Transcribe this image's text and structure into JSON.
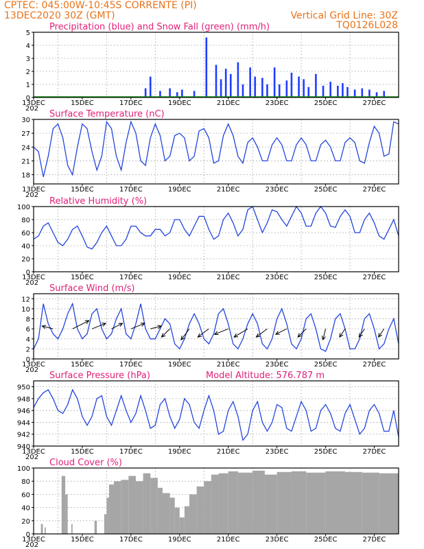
{
  "header": {
    "line1": "CPTEC:   045:00W-10:45S   CORRENTE (PI)",
    "line2_left": "13DEC2020 30Z (GMT)",
    "line2_right": "Vertical Grid Line: 30Z",
    "line3_right": "TQ0126L028"
  },
  "colors": {
    "header": "#e8731a",
    "title": "#e0207a",
    "line": "#2244dd",
    "precip": "#1e3cff",
    "snow": "#1a9a1a",
    "cloud": "#a6a6a6",
    "arrow": "#000000"
  },
  "x_axis": {
    "ticks": [
      "13DEC",
      "15DEC",
      "17DEC",
      "19DEC",
      "21DEC",
      "23DEC",
      "25DEC",
      "27DEC"
    ],
    "year_stub": "202",
    "days_start": "13DEC2020",
    "days_span": 15
  },
  "chart_data": [
    {
      "type": "bar",
      "title": "Precipitation (blue) and Snow Fall (green) (mm/h)",
      "ylim": [
        0,
        5
      ],
      "yticks": [
        "0",
        "1",
        "2",
        "3",
        "4",
        "5"
      ],
      "grid": true,
      "series": [
        {
          "name": "Precipitation",
          "color": "#1e3cff",
          "x": [
            4.6,
            4.8,
            5.2,
            5.6,
            5.9,
            6.1,
            6.6,
            7.1,
            7.5,
            7.7,
            7.9,
            8.1,
            8.4,
            8.6,
            8.9,
            9.1,
            9.4,
            9.6,
            9.9,
            10.1,
            10.4,
            10.6,
            10.9,
            11.1,
            11.3,
            11.6,
            11.9,
            12.2,
            12.5,
            12.7,
            12.9,
            13.2,
            13.5,
            13.8,
            14.1,
            14.4
          ],
          "values": [
            0.7,
            1.6,
            0.5,
            0.7,
            0.4,
            0.6,
            0.5,
            4.6,
            2.5,
            1.4,
            2.2,
            1.8,
            2.7,
            1.0,
            2.3,
            1.6,
            1.5,
            1.0,
            2.3,
            1.0,
            1.3,
            1.9,
            1.6,
            1.4,
            0.8,
            1.8,
            0.9,
            1.2,
            0.9,
            1.1,
            0.8,
            0.6,
            0.7,
            0.6,
            0.4,
            0.5
          ]
        },
        {
          "name": "Snow Fall",
          "color": "#1a9a1a",
          "x": [],
          "values": []
        }
      ]
    },
    {
      "type": "line",
      "title": "Surface Temperature (nC)",
      "ylim": [
        16,
        30
      ],
      "yticks": [
        "18",
        "21",
        "24",
        "27",
        "30"
      ],
      "grid": true,
      "x": [
        0.0,
        0.2,
        0.4,
        0.6,
        0.8,
        1.0,
        1.2,
        1.4,
        1.6,
        1.8,
        2.0,
        2.2,
        2.4,
        2.6,
        2.8,
        3.0,
        3.2,
        3.4,
        3.6,
        3.8,
        4.0,
        4.2,
        4.4,
        4.6,
        4.8,
        5.0,
        5.2,
        5.4,
        5.6,
        5.8,
        6.0,
        6.2,
        6.4,
        6.6,
        6.8,
        7.0,
        7.2,
        7.4,
        7.6,
        7.8,
        8.0,
        8.2,
        8.4,
        8.6,
        8.8,
        9.0,
        9.2,
        9.4,
        9.6,
        9.8,
        10.0,
        10.2,
        10.4,
        10.6,
        10.8,
        11.0,
        11.2,
        11.4,
        11.6,
        11.8,
        12.0,
        12.2,
        12.4,
        12.6,
        12.8,
        13.0,
        13.2,
        13.4,
        13.6,
        13.8,
        14.0,
        14.2,
        14.4,
        14.6,
        14.8,
        15.0
      ],
      "values": [
        24,
        23,
        17.5,
        22,
        28,
        29,
        26,
        20,
        18,
        24,
        29,
        28,
        23,
        19,
        22,
        29.5,
        28,
        22,
        19,
        25,
        29.5,
        27,
        21,
        20,
        26,
        29,
        26.5,
        21,
        22,
        26.5,
        27,
        26,
        21,
        22,
        27.5,
        28,
        26,
        20.5,
        21,
        26.5,
        29,
        26.5,
        22,
        20.5,
        25,
        26,
        24,
        21,
        21,
        24.5,
        26,
        24.5,
        21,
        21,
        24.5,
        26,
        24.5,
        21,
        21,
        24.5,
        25.5,
        24,
        21,
        21,
        25,
        26,
        25,
        21,
        20.5,
        25,
        28.5,
        27,
        22,
        22.5,
        29.5,
        29
      ]
    },
    {
      "type": "line",
      "title": "Relative Humidity (%)",
      "ylim": [
        0,
        100
      ],
      "yticks": [
        "0",
        "20",
        "40",
        "60",
        "80",
        "100"
      ],
      "grid": true,
      "x": [
        0.0,
        0.2,
        0.4,
        0.6,
        0.8,
        1.0,
        1.2,
        1.4,
        1.6,
        1.8,
        2.0,
        2.2,
        2.4,
        2.6,
        2.8,
        3.0,
        3.2,
        3.4,
        3.6,
        3.8,
        4.0,
        4.2,
        4.4,
        4.6,
        4.8,
        5.0,
        5.2,
        5.4,
        5.6,
        5.8,
        6.0,
        6.2,
        6.4,
        6.6,
        6.8,
        7.0,
        7.2,
        7.4,
        7.6,
        7.8,
        8.0,
        8.2,
        8.4,
        8.6,
        8.8,
        9.0,
        9.2,
        9.4,
        9.6,
        9.8,
        10.0,
        10.2,
        10.4,
        10.6,
        10.8,
        11.0,
        11.2,
        11.4,
        11.6,
        11.8,
        12.0,
        12.2,
        12.4,
        12.6,
        12.8,
        13.0,
        13.2,
        13.4,
        13.6,
        13.8,
        14.0,
        14.2,
        14.4,
        14.6,
        14.8,
        15.0
      ],
      "values": [
        50,
        55,
        70,
        75,
        60,
        45,
        40,
        50,
        65,
        70,
        55,
        38,
        35,
        45,
        60,
        70,
        55,
        40,
        40,
        50,
        70,
        70,
        60,
        55,
        55,
        65,
        65,
        55,
        60,
        80,
        80,
        65,
        55,
        70,
        85,
        85,
        65,
        50,
        55,
        80,
        90,
        75,
        55,
        65,
        95,
        100,
        80,
        60,
        75,
        95,
        92,
        80,
        70,
        85,
        100,
        90,
        70,
        70,
        90,
        100,
        90,
        70,
        68,
        85,
        95,
        85,
        60,
        60,
        80,
        90,
        75,
        55,
        50,
        65,
        80,
        55
      ],
      "ylabel": ""
    },
    {
      "type": "line",
      "title": "Surface Wind (m/s)",
      "ylim": [
        0,
        13
      ],
      "yticks": [
        "0",
        "2",
        "4",
        "6",
        "8",
        "10",
        "12"
      ],
      "grid": true,
      "x": [
        0.0,
        0.2,
        0.4,
        0.6,
        0.8,
        1.0,
        1.2,
        1.4,
        1.6,
        1.8,
        2.0,
        2.2,
        2.4,
        2.6,
        2.8,
        3.0,
        3.2,
        3.4,
        3.6,
        3.8,
        4.0,
        4.2,
        4.4,
        4.6,
        4.8,
        5.0,
        5.2,
        5.4,
        5.6,
        5.8,
        6.0,
        6.2,
        6.4,
        6.6,
        6.8,
        7.0,
        7.2,
        7.4,
        7.6,
        7.8,
        8.0,
        8.2,
        8.4,
        8.6,
        8.8,
        9.0,
        9.2,
        9.4,
        9.6,
        9.8,
        10.0,
        10.2,
        10.4,
        10.6,
        10.8,
        11.0,
        11.2,
        11.4,
        11.6,
        11.8,
        12.0,
        12.2,
        12.4,
        12.6,
        12.8,
        13.0,
        13.2,
        13.4,
        13.6,
        13.8,
        14.0,
        14.2,
        14.4,
        14.6,
        14.8,
        15.0
      ],
      "values": [
        2,
        4,
        11,
        7,
        5,
        4,
        6,
        9,
        11,
        6,
        4,
        5,
        9,
        10,
        6,
        4,
        5,
        8,
        10,
        5,
        4,
        7,
        11,
        6,
        4,
        4,
        6,
        8,
        7,
        3,
        2,
        4,
        7,
        9,
        7,
        4,
        3,
        5,
        9,
        10,
        7,
        3,
        2,
        4,
        7,
        9,
        7,
        3,
        2,
        4,
        8,
        10,
        7,
        3,
        2,
        4,
        8,
        9,
        6,
        2,
        1.5,
        4,
        8,
        9,
        6,
        2,
        2,
        4,
        8,
        9,
        6,
        2,
        3,
        6,
        8,
        3
      ],
      "arrows": {
        "x": [
          0.8,
          1.6,
          2.4,
          3.2,
          4.0,
          4.8,
          5.6,
          6.4,
          7.2,
          8.0,
          8.8,
          9.6,
          10.4,
          11.2,
          12.0,
          12.8,
          13.6,
          14.4
        ],
        "u": [
          -4,
          6,
          5,
          4,
          5,
          4,
          -3,
          -3,
          -4,
          -5,
          -5,
          -4,
          -4,
          -3,
          -1,
          -2,
          -2,
          -2
        ],
        "v": [
          1,
          3,
          2,
          2,
          2,
          1,
          -3,
          -4,
          -3,
          -2,
          -3,
          -3,
          -2,
          -3,
          -4,
          -3,
          -3,
          -3
        ]
      }
    },
    {
      "type": "line",
      "title": "Surface Pressure (hPa)",
      "annotation": "Model Altitude: 576.787 m",
      "ylim": [
        940,
        951
      ],
      "yticks": [
        "940",
        "942",
        "944",
        "946",
        "948",
        "950"
      ],
      "grid": true,
      "x": [
        0.0,
        0.2,
        0.4,
        0.6,
        0.8,
        1.0,
        1.2,
        1.4,
        1.6,
        1.8,
        2.0,
        2.2,
        2.4,
        2.6,
        2.8,
        3.0,
        3.2,
        3.4,
        3.6,
        3.8,
        4.0,
        4.2,
        4.4,
        4.6,
        4.8,
        5.0,
        5.2,
        5.4,
        5.6,
        5.8,
        6.0,
        6.2,
        6.4,
        6.6,
        6.8,
        7.0,
        7.2,
        7.4,
        7.6,
        7.8,
        8.0,
        8.2,
        8.4,
        8.6,
        8.8,
        9.0,
        9.2,
        9.4,
        9.6,
        9.8,
        10.0,
        10.2,
        10.4,
        10.6,
        10.8,
        11.0,
        11.2,
        11.4,
        11.6,
        11.8,
        12.0,
        12.2,
        12.4,
        12.6,
        12.8,
        13.0,
        13.2,
        13.4,
        13.6,
        13.8,
        14.0,
        14.2,
        14.4,
        14.6,
        14.8,
        15.0
      ],
      "values": [
        946.5,
        948,
        949,
        949.5,
        948,
        946,
        945.5,
        947,
        949.5,
        948,
        945,
        943.5,
        945,
        948,
        948.5,
        945,
        943.5,
        946,
        948.5,
        946,
        944,
        945.5,
        948.5,
        946,
        943,
        943.5,
        947,
        948,
        945,
        943,
        944.5,
        948,
        947,
        944,
        943,
        946,
        948.5,
        946,
        942,
        942.5,
        946,
        947.5,
        945,
        941,
        942,
        946,
        947.5,
        944,
        942.5,
        944,
        947,
        946.5,
        943,
        942.5,
        945,
        947.5,
        946,
        942.5,
        943,
        946,
        947,
        945.5,
        943,
        942.5,
        945.5,
        947,
        944.5,
        942,
        943,
        946,
        947,
        945.5,
        942.5,
        942.5,
        946,
        941.5
      ]
    },
    {
      "type": "bar",
      "title": "Cloud Cover (%)",
      "ylim": [
        0,
        100
      ],
      "yticks": [
        "0",
        "20",
        "40",
        "60",
        "80",
        "100"
      ],
      "grid": true,
      "segments": [
        {
          "x0": 0.3,
          "x1": 0.38,
          "value": 15
        },
        {
          "x0": 0.45,
          "x1": 0.5,
          "value": 10
        },
        {
          "x0": 1.15,
          "x1": 1.3,
          "value": 88
        },
        {
          "x0": 1.3,
          "x1": 1.4,
          "value": 60
        },
        {
          "x0": 1.55,
          "x1": 1.6,
          "value": 15
        },
        {
          "x0": 2.5,
          "x1": 2.6,
          "value": 20
        },
        {
          "x0": 2.9,
          "x1": 3.0,
          "value": 30
        },
        {
          "x0": 3.0,
          "x1": 3.1,
          "value": 55
        },
        {
          "x0": 3.1,
          "x1": 3.3,
          "value": 75
        },
        {
          "x0": 3.3,
          "x1": 3.6,
          "value": 80
        },
        {
          "x0": 3.6,
          "x1": 3.9,
          "value": 82
        },
        {
          "x0": 3.9,
          "x1": 4.2,
          "value": 88
        },
        {
          "x0": 4.2,
          "x1": 4.5,
          "value": 80
        },
        {
          "x0": 4.5,
          "x1": 4.8,
          "value": 92
        },
        {
          "x0": 4.8,
          "x1": 5.1,
          "value": 85
        },
        {
          "x0": 5.1,
          "x1": 5.3,
          "value": 70
        },
        {
          "x0": 5.3,
          "x1": 5.6,
          "value": 62
        },
        {
          "x0": 5.6,
          "x1": 5.8,
          "value": 55
        },
        {
          "x0": 5.8,
          "x1": 6.0,
          "value": 40
        },
        {
          "x0": 6.0,
          "x1": 6.2,
          "value": 25
        },
        {
          "x0": 6.2,
          "x1": 6.4,
          "value": 42
        },
        {
          "x0": 6.4,
          "x1": 6.7,
          "value": 60
        },
        {
          "x0": 6.7,
          "x1": 7.0,
          "value": 72
        },
        {
          "x0": 7.0,
          "x1": 7.3,
          "value": 80
        },
        {
          "x0": 7.3,
          "x1": 7.6,
          "value": 90
        },
        {
          "x0": 7.6,
          "x1": 8.0,
          "value": 92
        },
        {
          "x0": 8.0,
          "x1": 8.4,
          "value": 95
        },
        {
          "x0": 8.4,
          "x1": 9.0,
          "value": 93
        },
        {
          "x0": 9.0,
          "x1": 9.5,
          "value": 96
        },
        {
          "x0": 9.5,
          "x1": 10.0,
          "value": 90
        },
        {
          "x0": 10.0,
          "x1": 10.6,
          "value": 94
        },
        {
          "x0": 10.6,
          "x1": 11.2,
          "value": 95
        },
        {
          "x0": 11.2,
          "x1": 12.0,
          "value": 93
        },
        {
          "x0": 12.0,
          "x1": 12.8,
          "value": 95
        },
        {
          "x0": 12.8,
          "x1": 13.5,
          "value": 94
        },
        {
          "x0": 13.5,
          "x1": 14.2,
          "value": 93
        },
        {
          "x0": 14.2,
          "x1": 15.0,
          "value": 92
        }
      ]
    }
  ]
}
